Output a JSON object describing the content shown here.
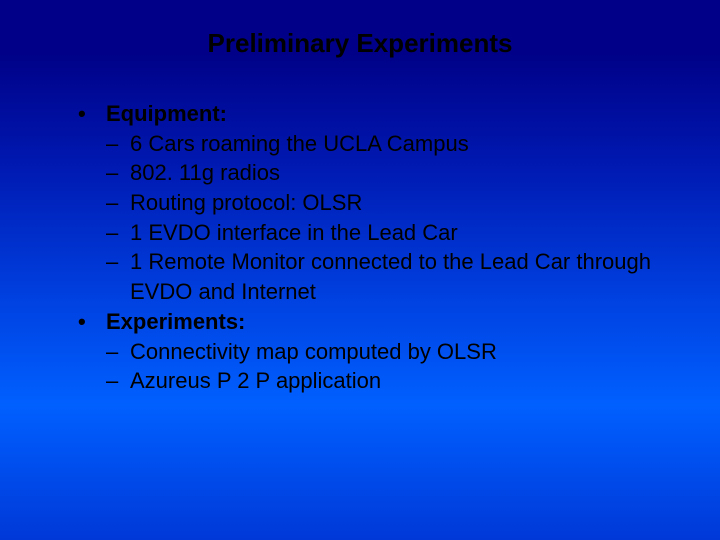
{
  "background": {
    "gradient_start": "#000188",
    "gradient_mid": "#0040e0",
    "gradient_end": "#0038d8"
  },
  "title": {
    "text": "Preliminary Experiments",
    "fontsize": 26,
    "fontweight": "bold",
    "color": "#000000"
  },
  "body": {
    "fontsize": 22,
    "color": "#000000",
    "bullet_char": "•",
    "dash_char": "–"
  },
  "items": [
    {
      "label": "Equipment:",
      "sub": [
        "6 Cars roaming the UCLA Campus",
        "802. 11g radios",
        "Routing protocol: OLSR",
        "1 EVDO interface in the Lead Car",
        "1 Remote Monitor connected to the Lead Car through EVDO and Internet"
      ]
    },
    {
      "label": "Experiments:",
      "sub": [
        "Connectivity map computed by OLSR",
        "Azureus P 2 P application"
      ]
    }
  ]
}
